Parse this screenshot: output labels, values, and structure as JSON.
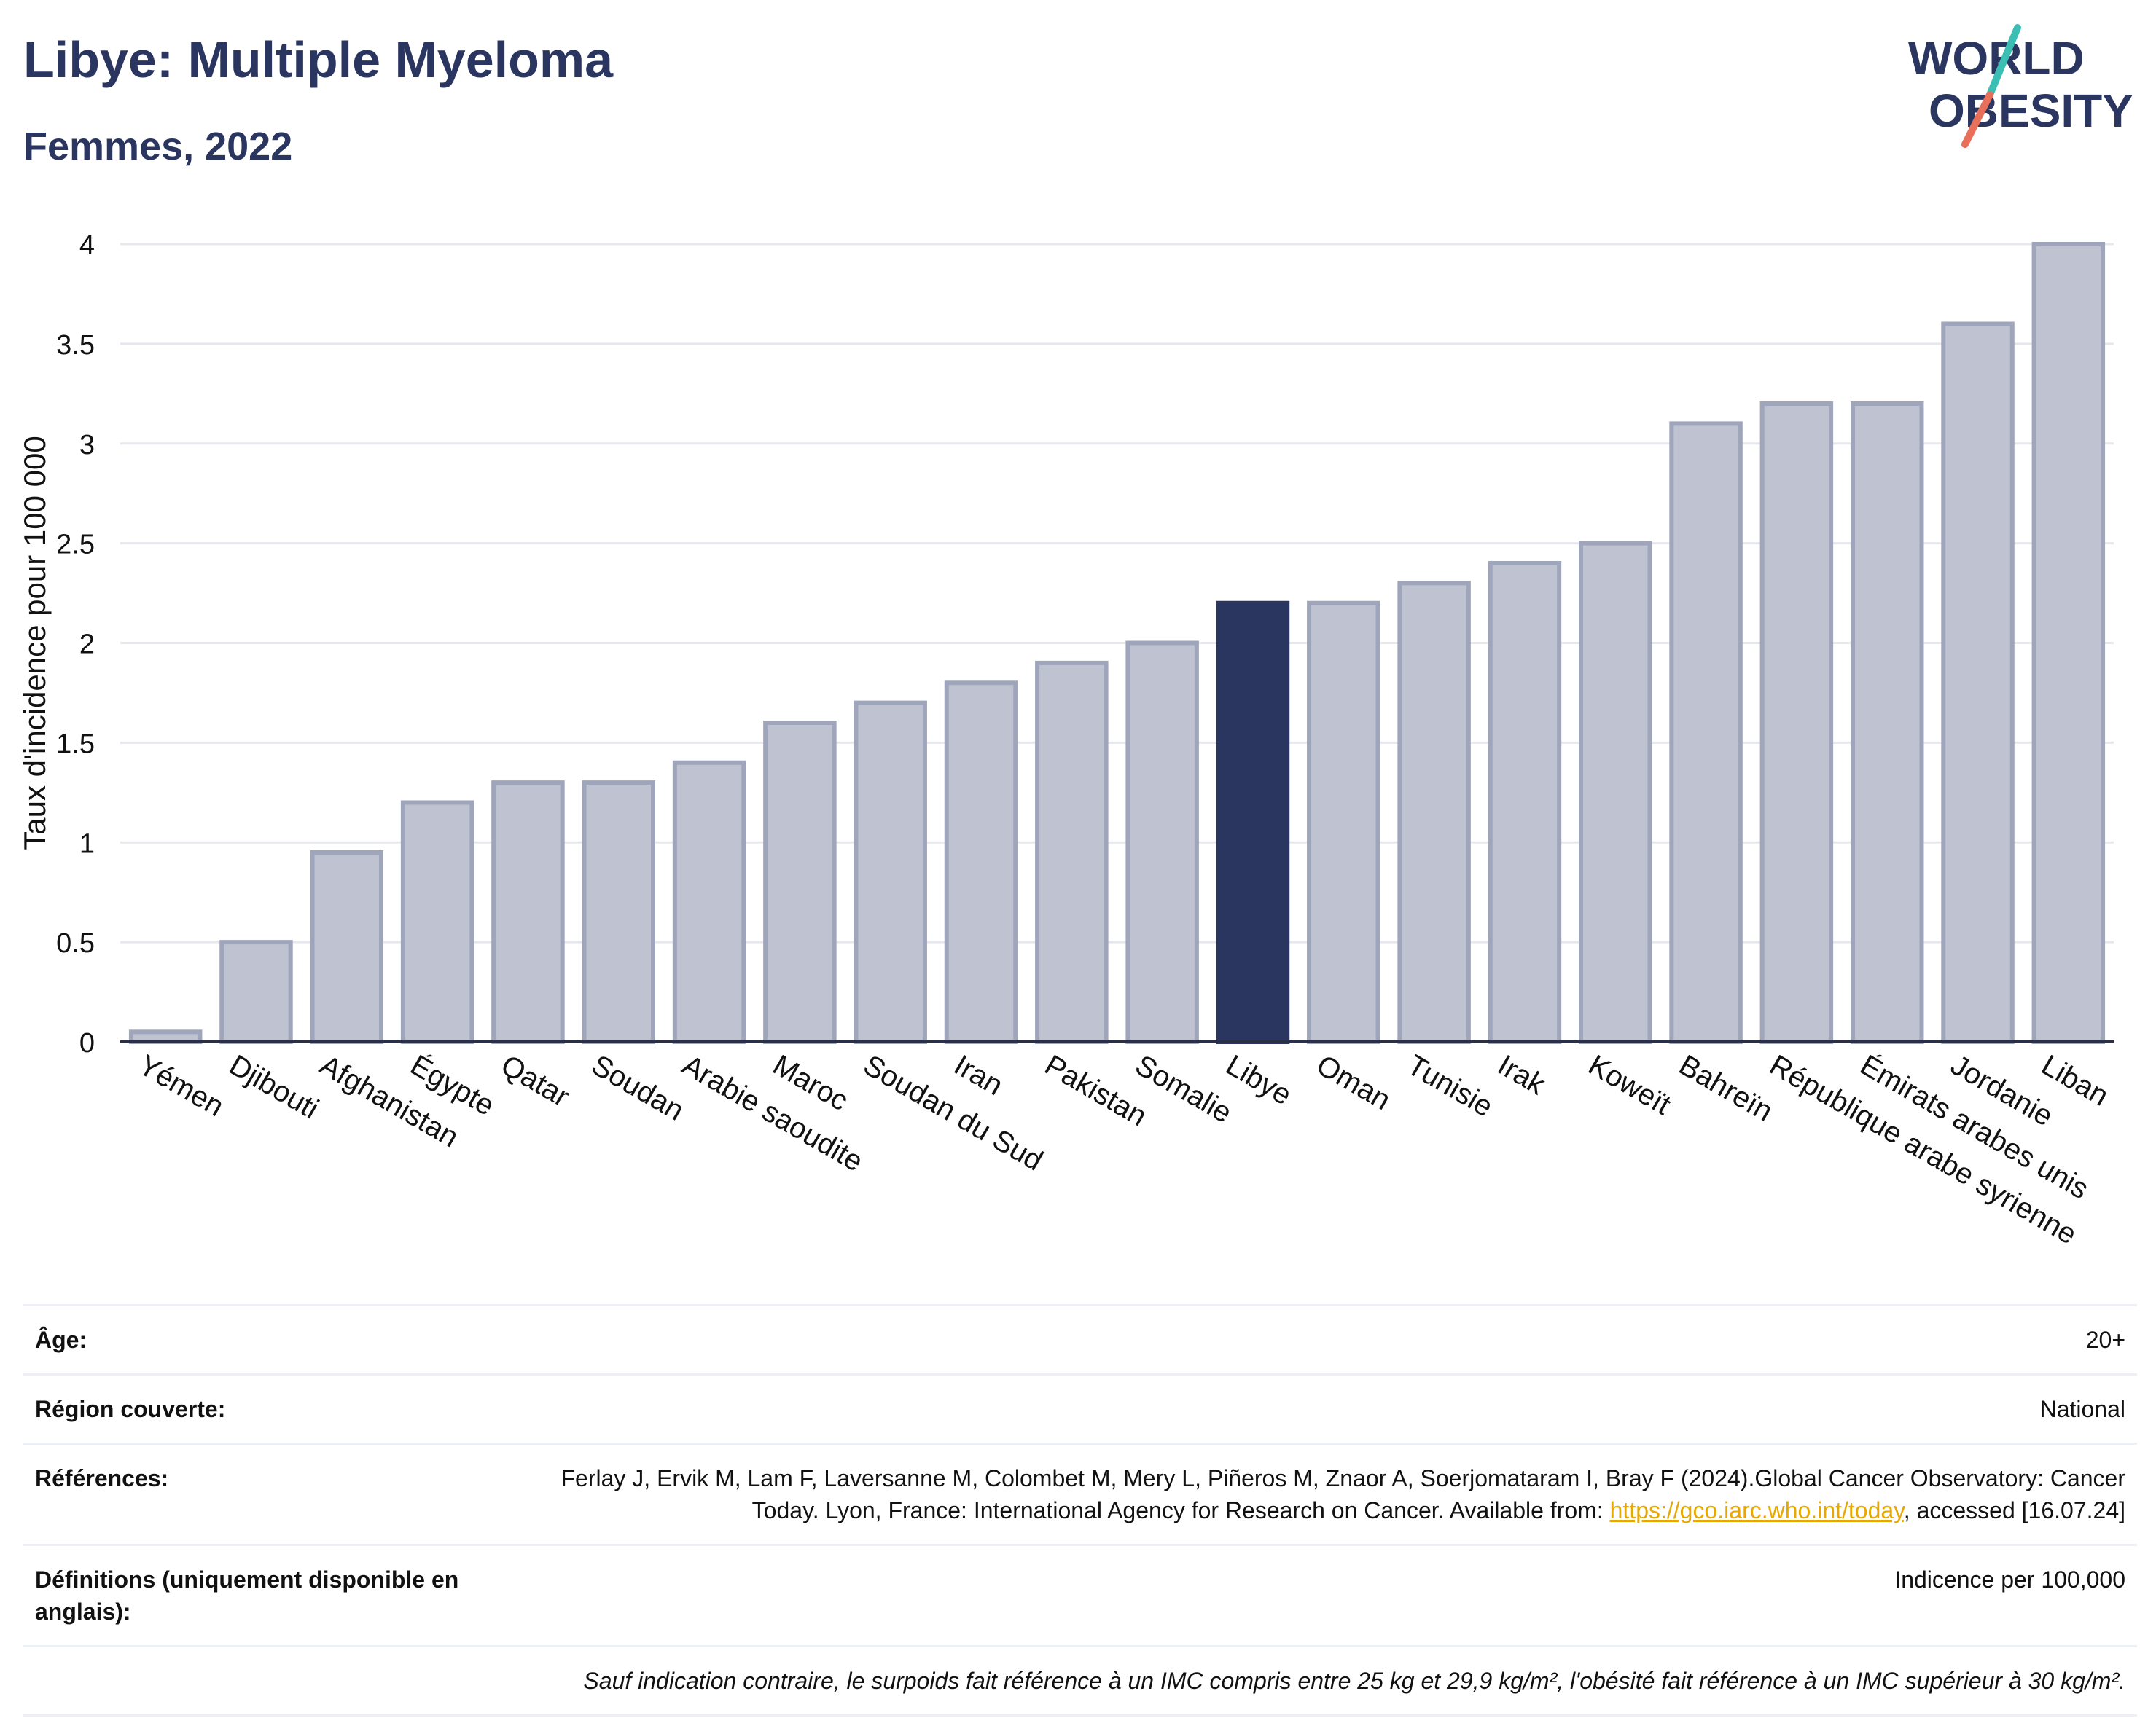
{
  "header": {
    "title": "Libye: Multiple Myeloma",
    "subtitle": "Femmes, 2022"
  },
  "logo": {
    "line1": "WORLD",
    "line2": "OBESITY"
  },
  "colors": {
    "highlight_bar": "#2a3560",
    "other_bars": "#bfc3d1",
    "other_bars_stroke": "#9fa5ba",
    "text_dark": "#2a3560",
    "link": "#e8a800",
    "logo_teal": "#3bbfb5",
    "logo_coral": "#e8705a"
  },
  "chart_data": {
    "type": "bar",
    "title": "Libye: Multiple Myeloma",
    "subtitle": "Femmes, 2022",
    "xlabel": "",
    "ylabel": "Taux d'incidence pour 100 000",
    "ylim": [
      0,
      4
    ],
    "yticks": [
      0,
      0.5,
      1,
      1.5,
      2,
      2.5,
      3,
      3.5,
      4
    ],
    "ytick_labels": [
      "0",
      "0.5",
      "1",
      "1.5",
      "2",
      "2.5",
      "3",
      "3.5",
      "4"
    ],
    "grid": true,
    "highlight": "Libye",
    "categories": [
      "Yémen",
      "Djibouti",
      "Afghanistan",
      "Égypte",
      "Qatar",
      "Soudan",
      "Arabie saoudite",
      "Maroc",
      "Soudan du Sud",
      "Iran",
      "Pakistan",
      "Somalie",
      "Libye",
      "Oman",
      "Tunisie",
      "Irak",
      "Koweït",
      "Bahreïn",
      "République arabe syrienne",
      "Émirats arabes unis",
      "Jordanie",
      "Liban"
    ],
    "values": [
      0.05,
      0.5,
      0.95,
      1.2,
      1.3,
      1.3,
      1.4,
      1.6,
      1.7,
      1.8,
      1.9,
      2.0,
      2.2,
      2.2,
      2.3,
      2.4,
      2.5,
      3.1,
      3.2,
      3.2,
      3.6,
      4.0
    ]
  },
  "info_table": {
    "age_label": "Âge:",
    "age_value": "20+",
    "region_label": "Région couverte:",
    "region_value": "National",
    "references_label": "Références:",
    "references_text_1": "Ferlay J, Ervik M, Lam F, Laversanne M, Colombet M, Mery L, Piñeros M, Znaor A, Soerjomataram I, Bray F (2024).Global Cancer Observatory: Cancer Today. Lyon, France: International Agency for Research on Cancer. Available from: ",
    "references_link": "https://gco.iarc.who.int/today",
    "references_text_2": ", accessed [16.07.24]",
    "definitions_label": "Définitions (uniquement disponible en anglais):",
    "definitions_value": "Indicence per 100,000",
    "footnote": "Sauf indication contraire, le surpoids fait référence à un IMC compris entre 25 kg et 29,9 kg/m², l'obésité fait référence à un IMC supérieur à 30 kg/m²."
  }
}
